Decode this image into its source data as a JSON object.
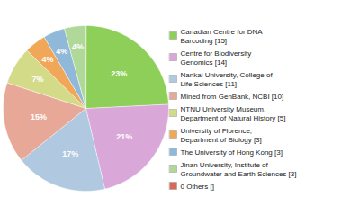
{
  "chart_data": {
    "type": "pie",
    "categories": [
      "Canadian Centre for DNA\nBarcoding [15]",
      "Centre for Biodiversity\nGenomics [14]",
      "Nankai University, College of\nLife Sciences [11]",
      "Mined from GenBank, NCBI [10]",
      "NTNU University Museum,\nDepartment of Natural History [5]",
      "University of Florence,\nDepartment of Biology [3]",
      "The University of Hong Kong [3]",
      "Jinan University, Institute of\nGroundwater and Earth Sciences [3]",
      "0 Others []"
    ],
    "values": [
      23,
      21,
      17,
      15,
      7,
      4,
      4,
      4,
      0
    ],
    "value_labels": [
      "23%",
      "21%",
      "17%",
      "15%",
      "7%",
      "4%",
      "4%",
      "4%",
      null
    ],
    "colors": [
      "#8ecf5a",
      "#d9a8d9",
      "#b0c8e0",
      "#e8a898",
      "#d4db88",
      "#f0a858",
      "#90b8d8",
      "#b0d898",
      "#d86858"
    ],
    "data_labels": true,
    "legend": "right"
  }
}
